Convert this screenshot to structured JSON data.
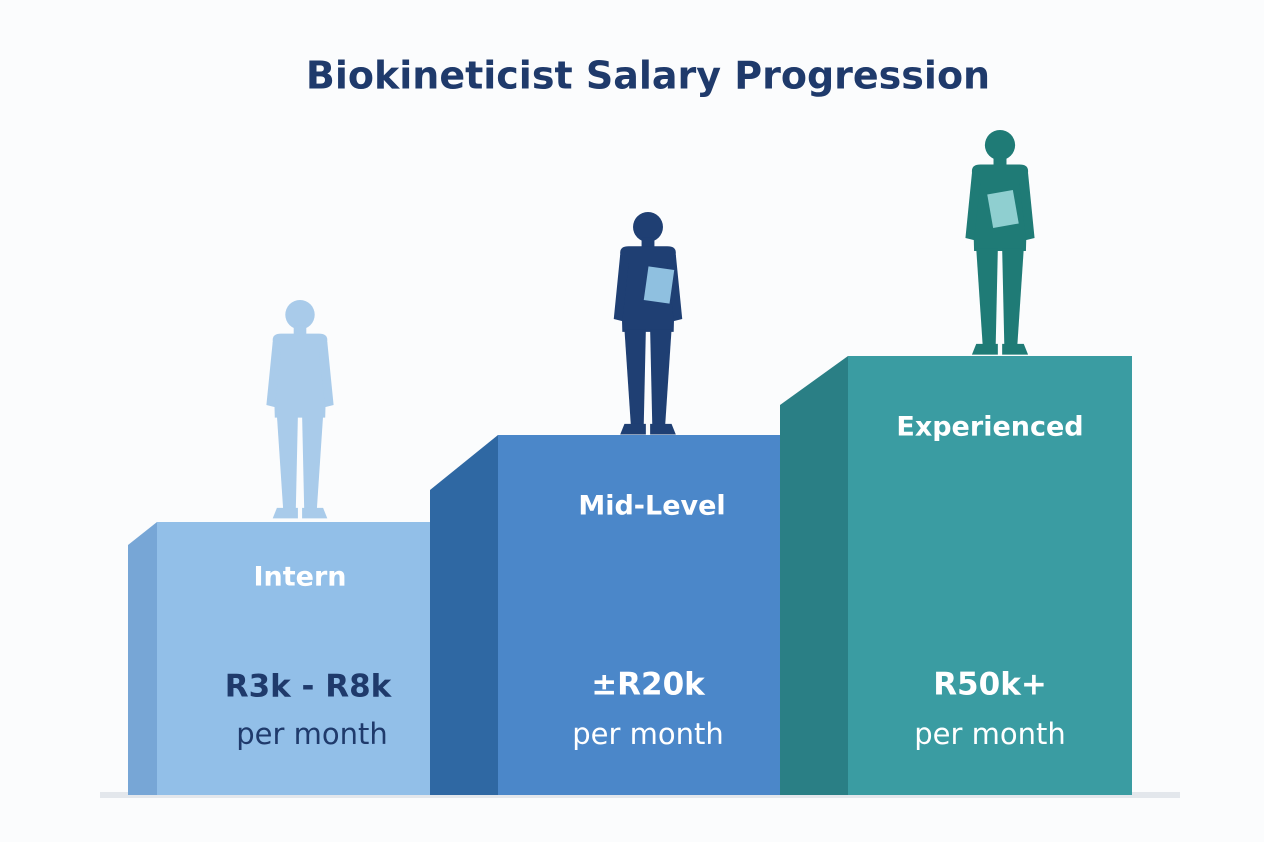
{
  "title": "Biokineticist Salary Progression",
  "levels": [
    {
      "label": "Intern",
      "salary": "R3k - R8k",
      "period": "per month"
    },
    {
      "label": "Mid-Level",
      "salary": "±R20k",
      "period": "per month"
    },
    {
      "label": "Experienced",
      "salary": "R50k+",
      "period": "per month"
    }
  ]
}
